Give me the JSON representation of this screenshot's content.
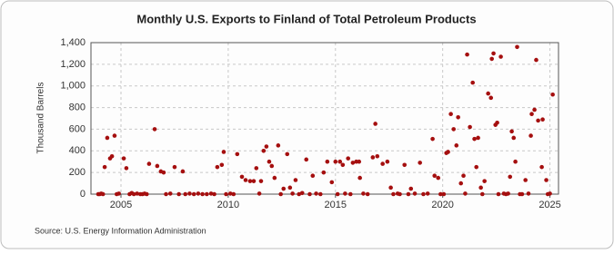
{
  "chart_data": {
    "type": "scatter",
    "title": "Monthly U.S. Exports to Finland of Total Petroleum Products",
    "y_label": "Thousand Barrels",
    "source": "Source: U.S. Energy Information Administration",
    "color": "#a50f0f",
    "grid": true,
    "xlim": [
      2003.6,
      2025.4
    ],
    "xticks": [
      2005,
      2010,
      2015,
      2020,
      2025
    ],
    "ylim": [
      0,
      1400
    ],
    "yticks": [
      0,
      200,
      400,
      600,
      800,
      {
        "value": 1000,
        "label": "1,000"
      },
      {
        "value": 1200,
        "label": "1,200"
      },
      {
        "value": 1400,
        "label": "1,400"
      }
    ],
    "x": [
      2003.94,
      2004.24,
      2004.36,
      2004.49,
      2004.58,
      2004.7,
      2005.13,
      2005.25,
      2006.31,
      2006.57,
      2006.69,
      2006.86,
      2006.99,
      2007.5,
      2007.88,
      2009.49,
      2009.7,
      2009.79,
      2010.42,
      2010.64,
      2010.81,
      2011.02,
      2011.19,
      2011.31,
      2011.53,
      2011.65,
      2011.78,
      2011.91,
      2012.03,
      2012.16,
      2012.33,
      2012.58,
      2012.75,
      2012.88,
      2013.14,
      2013.64,
      2013.94,
      2014.45,
      2014.62,
      2014.83,
      2015.0,
      2015.21,
      2015.34,
      2015.59,
      2015.81,
      2015.97,
      2016.1,
      2016.14,
      2016.74,
      2016.86,
      2016.95,
      2017.2,
      2017.42,
      2017.58,
      2018.22,
      2018.52,
      2018.94,
      2019.53,
      2019.62,
      2019.79,
      2020.17,
      2020.25,
      2020.38,
      2020.51,
      2020.64,
      2020.72,
      2020.85,
      2020.97,
      2021.14,
      2021.27,
      2021.4,
      2021.48,
      2021.57,
      2021.65,
      2021.78,
      2021.95,
      2022.12,
      2022.25,
      2022.29,
      2022.37,
      2022.46,
      2022.54,
      2022.71,
      2023.14,
      2023.22,
      2023.31,
      2023.39,
      2023.47,
      2023.86,
      2024.11,
      2024.15,
      2024.28,
      2024.36,
      2024.45,
      2024.62,
      2024.66,
      2024.83,
      2025.13,
      2004.0,
      2004.08,
      2004.16,
      2004.8,
      2004.9,
      2005.4,
      2005.5,
      2005.6,
      2005.75,
      2005.9,
      2006.0,
      2006.1,
      2006.2,
      2007.1,
      2007.3,
      2007.7,
      2008.0,
      2008.2,
      2008.4,
      2008.6,
      2008.8,
      2009.0,
      2009.2,
      2009.35,
      2009.9,
      2010.1,
      2010.25,
      2011.45,
      2012.45,
      2013.0,
      2013.3,
      2013.45,
      2013.8,
      2014.1,
      2014.3,
      2015.1,
      2015.45,
      2015.7,
      2016.3,
      2016.5,
      2017.7,
      2017.9,
      2018.0,
      2018.4,
      2018.7,
      2019.1,
      2019.3,
      2019.9,
      2020.05,
      2021.05,
      2021.85,
      2022.6,
      2022.85,
      2022.95,
      2023.05,
      2023.6,
      2023.7,
      2024.0,
      2024.9,
      2025.0
    ],
    "y": [
      0,
      250,
      520,
      330,
      350,
      540,
      330,
      240,
      280,
      600,
      260,
      210,
      200,
      250,
      210,
      250,
      270,
      390,
      370,
      160,
      130,
      120,
      120,
      240,
      120,
      400,
      440,
      300,
      260,
      150,
      450,
      50,
      370,
      60,
      130,
      320,
      170,
      200,
      300,
      110,
      300,
      300,
      270,
      330,
      290,
      300,
      300,
      150,
      340,
      650,
      350,
      280,
      300,
      60,
      270,
      50,
      290,
      510,
      170,
      150,
      380,
      390,
      740,
      600,
      450,
      710,
      100,
      170,
      1290,
      620,
      1030,
      510,
      250,
      520,
      60,
      120,
      930,
      890,
      1250,
      1300,
      640,
      660,
      1270,
      160,
      580,
      520,
      300,
      1360,
      130,
      540,
      740,
      780,
      1240,
      680,
      250,
      690,
      130,
      920,
      0,
      5,
      0,
      0,
      5,
      0,
      10,
      0,
      5,
      0,
      0,
      5,
      0,
      0,
      5,
      0,
      0,
      5,
      0,
      5,
      0,
      0,
      5,
      0,
      0,
      5,
      0,
      5,
      0,
      5,
      0,
      10,
      0,
      5,
      0,
      0,
      5,
      0,
      5,
      0,
      0,
      5,
      0,
      0,
      5,
      0,
      5,
      0,
      0,
      5,
      0,
      0,
      5,
      0,
      5,
      0,
      0,
      5,
      0,
      5
    ]
  }
}
